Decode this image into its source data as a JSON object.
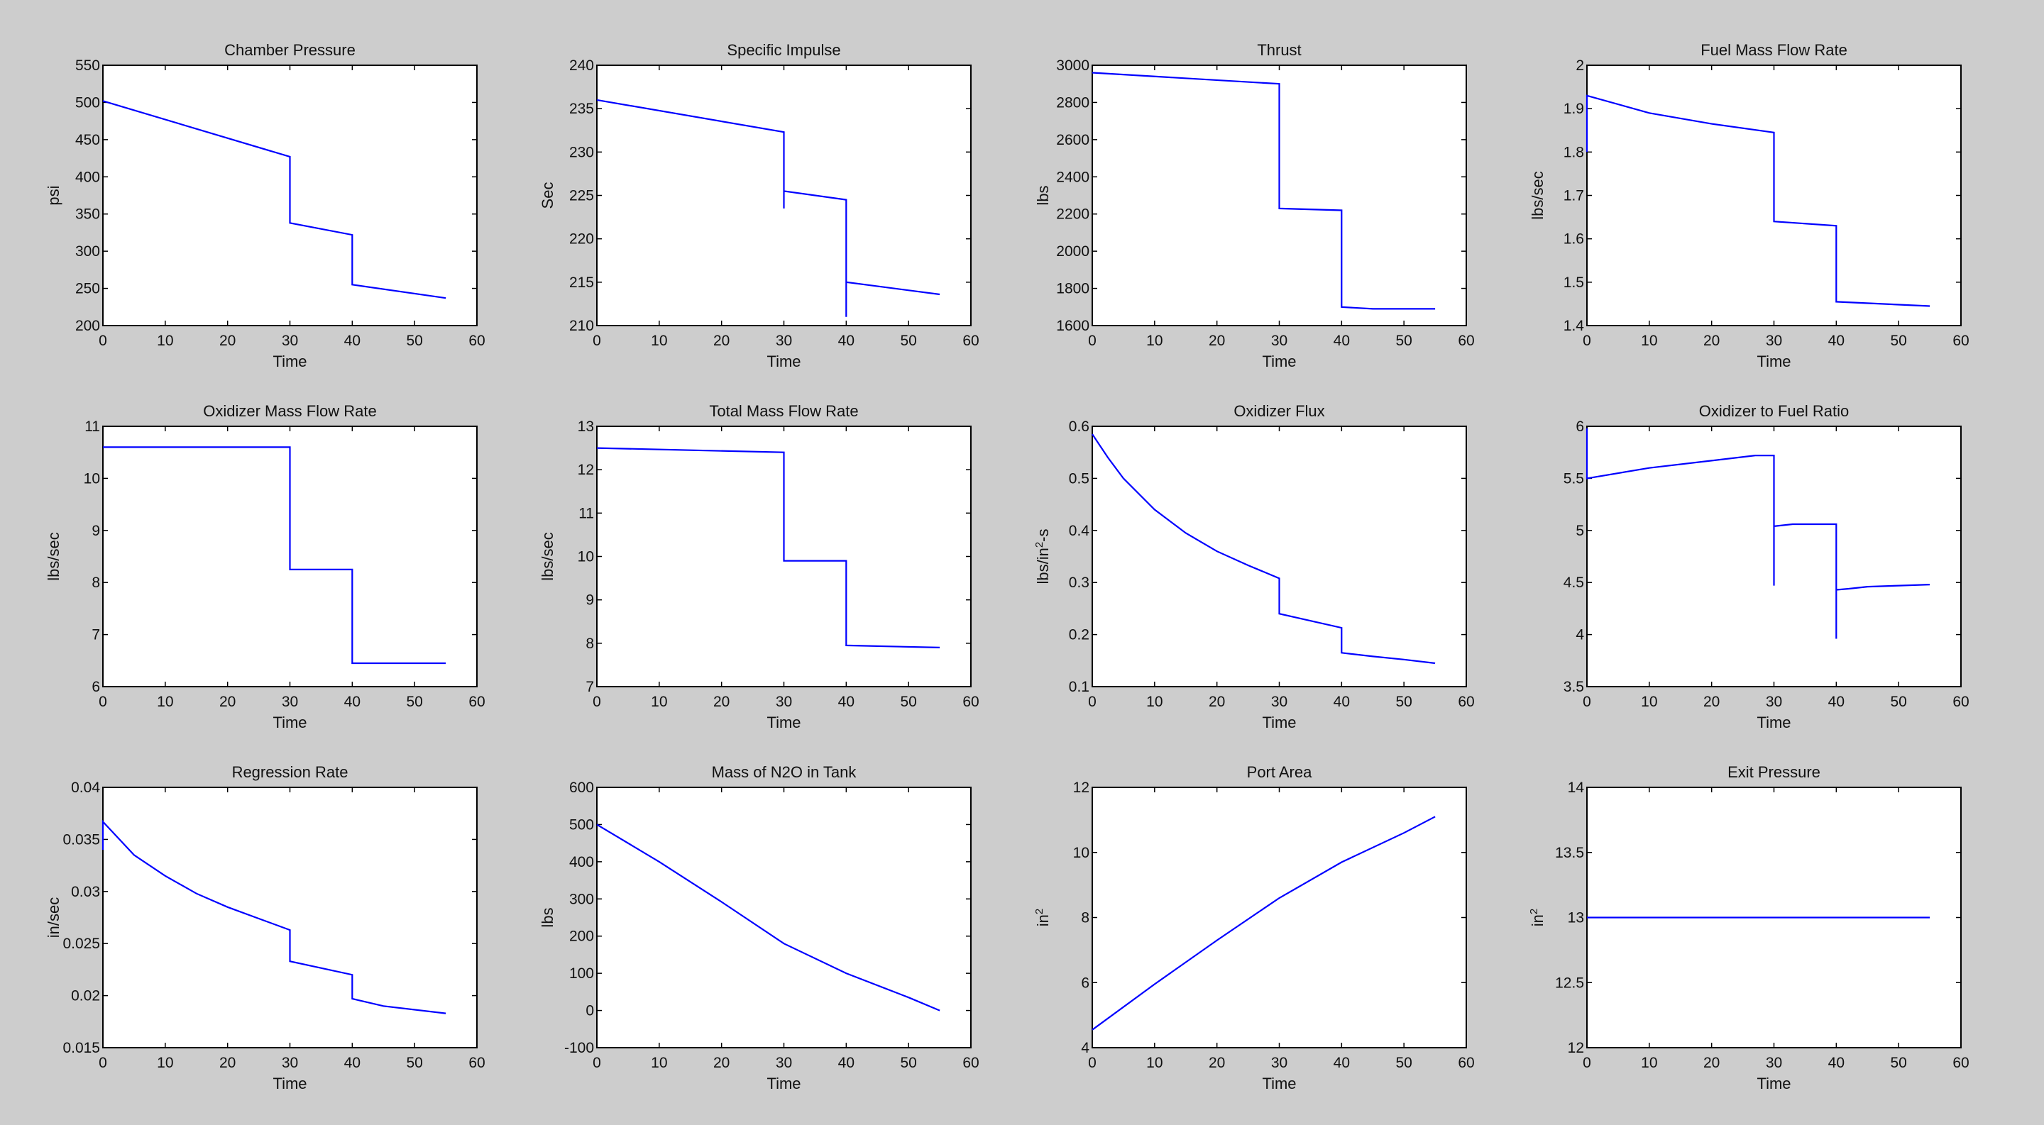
{
  "chart_data": [
    {
      "type": "line",
      "title": "Chamber Pressure",
      "xlabel": "Time",
      "ylabel": "psi",
      "xlim": [
        0,
        60
      ],
      "ylim": [
        200,
        550
      ],
      "xticks": [
        0,
        10,
        20,
        30,
        40,
        50,
        60
      ],
      "yticks": [
        200,
        250,
        300,
        350,
        400,
        450,
        500,
        550
      ],
      "grid": false,
      "color": "#0000ff",
      "x": [
        0,
        30,
        30,
        40,
        40,
        55
      ],
      "y": [
        502,
        427,
        338,
        322,
        255,
        237
      ]
    },
    {
      "type": "line",
      "title": "Specific Impulse",
      "xlabel": "Time",
      "ylabel": "Sec",
      "xlim": [
        0,
        60
      ],
      "ylim": [
        210,
        240
      ],
      "xticks": [
        0,
        10,
        20,
        30,
        40,
        50,
        60
      ],
      "yticks": [
        210,
        215,
        220,
        225,
        230,
        235,
        240
      ],
      "grid": false,
      "color": "#0000ff",
      "x": [
        0,
        30,
        30,
        30,
        40,
        40,
        40,
        55
      ],
      "y": [
        236,
        232.3,
        223.5,
        225.5,
        224.5,
        211,
        215,
        213.6
      ]
    },
    {
      "type": "line",
      "title": "Thrust",
      "xlabel": "Time",
      "ylabel": "lbs",
      "xlim": [
        0,
        60
      ],
      "ylim": [
        1600,
        3000
      ],
      "xticks": [
        0,
        10,
        20,
        30,
        40,
        50,
        60
      ],
      "yticks": [
        1600,
        1800,
        2000,
        2200,
        2400,
        2600,
        2800,
        3000
      ],
      "grid": false,
      "color": "#0000ff",
      "x": [
        0,
        30,
        30,
        40,
        40,
        45,
        55
      ],
      "y": [
        2960,
        2900,
        2230,
        2220,
        1700,
        1690,
        1690
      ]
    },
    {
      "type": "line",
      "title": "Fuel Mass Flow Rate",
      "xlabel": "Time",
      "ylabel": "lbs/sec",
      "xlim": [
        0,
        60
      ],
      "ylim": [
        1.4,
        2
      ],
      "xticks": [
        0,
        10,
        20,
        30,
        40,
        50,
        60
      ],
      "yticks": [
        1.4,
        1.5,
        1.6,
        1.7,
        1.8,
        1.9,
        2
      ],
      "grid": false,
      "color": "#0000ff",
      "x": [
        0,
        0,
        10,
        20,
        30,
        30,
        40,
        40,
        55
      ],
      "y": [
        1.8,
        1.93,
        1.89,
        1.865,
        1.845,
        1.64,
        1.63,
        1.455,
        1.445
      ]
    },
    {
      "type": "line",
      "title": "Oxidizer Mass Flow Rate",
      "xlabel": "Time",
      "ylabel": "lbs/sec",
      "xlim": [
        0,
        60
      ],
      "ylim": [
        6,
        11
      ],
      "xticks": [
        0,
        10,
        20,
        30,
        40,
        50,
        60
      ],
      "yticks": [
        6,
        7,
        8,
        9,
        10,
        11
      ],
      "grid": false,
      "color": "#0000ff",
      "x": [
        0,
        30,
        30,
        40,
        40,
        55
      ],
      "y": [
        10.6,
        10.6,
        8.25,
        8.25,
        6.45,
        6.45
      ]
    },
    {
      "type": "line",
      "title": "Total Mass Flow Rate",
      "xlabel": "Time",
      "ylabel": "lbs/sec",
      "xlim": [
        0,
        60
      ],
      "ylim": [
        7,
        13
      ],
      "xticks": [
        0,
        10,
        20,
        30,
        40,
        50,
        60
      ],
      "yticks": [
        7,
        8,
        9,
        10,
        11,
        12,
        13
      ],
      "grid": false,
      "color": "#0000ff",
      "x": [
        0,
        30,
        30,
        40,
        40,
        55
      ],
      "y": [
        12.5,
        12.4,
        9.9,
        9.9,
        7.95,
        7.9
      ]
    },
    {
      "type": "line",
      "title": "Oxidizer Flux",
      "xlabel": "Time",
      "ylabel": "lbs/in",
      "ylabel_sup": "2",
      "ylabel_suffix": "-s",
      "xlim": [
        0,
        60
      ],
      "ylim": [
        0.1,
        0.6
      ],
      "xticks": [
        0,
        10,
        20,
        30,
        40,
        50,
        60
      ],
      "yticks": [
        0.1,
        0.2,
        0.3,
        0.4,
        0.5,
        0.6
      ],
      "grid": false,
      "color": "#0000ff",
      "x": [
        0,
        2.5,
        5,
        10,
        15,
        20,
        25,
        30,
        30,
        40,
        40,
        45,
        50,
        55
      ],
      "y": [
        0.585,
        0.54,
        0.5,
        0.44,
        0.395,
        0.36,
        0.333,
        0.308,
        0.24,
        0.213,
        0.165,
        0.158,
        0.152,
        0.145
      ]
    },
    {
      "type": "line",
      "title": "Oxidizer to Fuel Ratio",
      "xlabel": "Time",
      "ylabel": "",
      "xlim": [
        0,
        60
      ],
      "ylim": [
        3.5,
        6
      ],
      "xticks": [
        0,
        10,
        20,
        30,
        40,
        50,
        60
      ],
      "yticks": [
        3.5,
        4,
        4.5,
        5,
        5.5,
        6
      ],
      "grid": false,
      "color": "#0000ff",
      "x": [
        0,
        0,
        10,
        20,
        27,
        30,
        30,
        30,
        33,
        40,
        40,
        40,
        42,
        45,
        50,
        55
      ],
      "y": [
        5.98,
        5.5,
        5.6,
        5.67,
        5.72,
        5.72,
        4.47,
        5.04,
        5.06,
        5.06,
        3.96,
        4.43,
        4.44,
        4.46,
        4.47,
        4.48
      ]
    },
    {
      "type": "line",
      "title": "Regression Rate",
      "xlabel": "Time",
      "ylabel": "in/sec",
      "xlim": [
        0,
        60
      ],
      "ylim": [
        0.015,
        0.04
      ],
      "xticks": [
        0,
        10,
        20,
        30,
        40,
        50,
        60
      ],
      "yticks": [
        0.015,
        0.02,
        0.025,
        0.03,
        0.035,
        0.04
      ],
      "grid": false,
      "color": "#0000ff",
      "x": [
        0,
        0,
        5,
        10,
        15,
        20,
        25,
        30,
        30,
        40,
        40,
        45,
        55
      ],
      "y": [
        0.034,
        0.0367,
        0.0335,
        0.0315,
        0.0298,
        0.0285,
        0.0274,
        0.0263,
        0.0233,
        0.022,
        0.0197,
        0.019,
        0.0183
      ]
    },
    {
      "type": "line",
      "title": "Mass of N2O in Tank",
      "xlabel": "Time",
      "ylabel": "lbs",
      "xlim": [
        0,
        60
      ],
      "ylim": [
        -100,
        600
      ],
      "xticks": [
        0,
        10,
        20,
        30,
        40,
        50,
        60
      ],
      "yticks": [
        -100,
        0,
        100,
        200,
        300,
        400,
        500,
        600
      ],
      "grid": false,
      "color": "#0000ff",
      "x": [
        0,
        10,
        20,
        30,
        40,
        50,
        55
      ],
      "y": [
        500,
        400,
        292,
        180,
        100,
        35,
        0
      ]
    },
    {
      "type": "line",
      "title": "Port Area",
      "xlabel": "Time",
      "ylabel": "in",
      "ylabel_sup": "2",
      "xlim": [
        0,
        60
      ],
      "ylim": [
        4,
        12
      ],
      "xticks": [
        0,
        10,
        20,
        30,
        40,
        50,
        60
      ],
      "yticks": [
        4,
        6,
        8,
        10,
        12
      ],
      "grid": false,
      "color": "#0000ff",
      "x": [
        0,
        10,
        20,
        30,
        40,
        50,
        55
      ],
      "y": [
        4.55,
        5.95,
        7.3,
        8.6,
        9.7,
        10.6,
        11.1
      ]
    },
    {
      "type": "line",
      "title": "Exit Pressure",
      "xlabel": "Time",
      "ylabel": "in",
      "ylabel_sup": "2",
      "xlim": [
        0,
        60
      ],
      "ylim": [
        12,
        14
      ],
      "xticks": [
        0,
        10,
        20,
        30,
        40,
        50,
        60
      ],
      "yticks": [
        12,
        12.5,
        13,
        13.5,
        14
      ],
      "grid": false,
      "color": "#0000ff",
      "x": [
        0,
        55
      ],
      "y": [
        13,
        13
      ]
    }
  ]
}
